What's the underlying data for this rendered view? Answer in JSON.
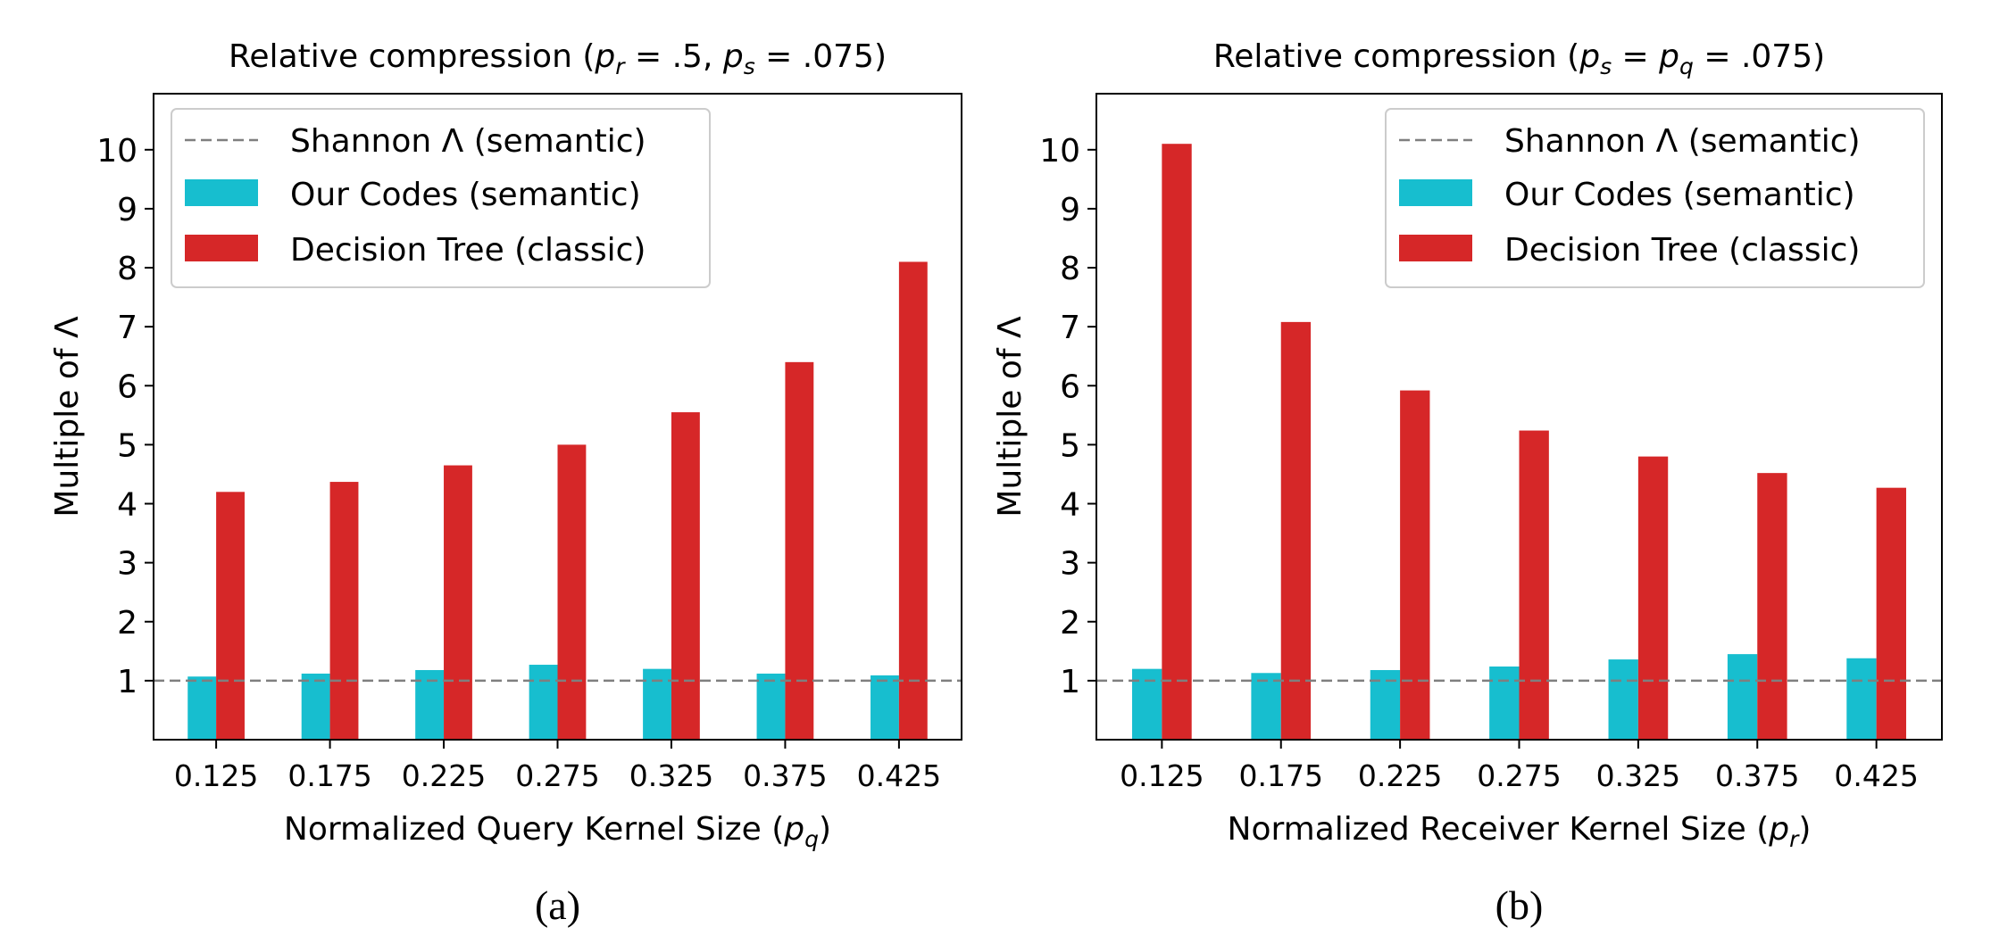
{
  "chart_data": [
    {
      "type": "bar",
      "panel_label": "(a)",
      "title_prefix": "Relative compression (",
      "title_params": [
        {
          "sym": "p",
          "sub": "r",
          "val": ".5"
        },
        {
          "sym": "p",
          "sub": "s",
          "val": ".075"
        }
      ],
      "title_suffix": ")",
      "xlabel_text": "Normalized Query Kernel Size (",
      "xlabel_sym": "p",
      "xlabel_sub": "q",
      "xlabel_suffix": ")",
      "ylabel": "Multiple of Λ",
      "categories": [
        "0.125",
        "0.175",
        "0.225",
        "0.275",
        "0.325",
        "0.375",
        "0.425"
      ],
      "yticks": [
        "1",
        "2",
        "3",
        "4",
        "5",
        "6",
        "7",
        "8",
        "9",
        "10"
      ],
      "ylim": [
        0,
        10.95
      ],
      "legend_position": "upper-left",
      "series": [
        {
          "name": "Our Codes (semantic)",
          "color": "#17becf",
          "values": [
            1.07,
            1.12,
            1.18,
            1.27,
            1.2,
            1.12,
            1.09
          ]
        },
        {
          "name": "Decision Tree (classic)",
          "color": "#d62728",
          "values": [
            4.2,
            4.37,
            4.65,
            5.0,
            5.55,
            6.4,
            8.1
          ]
        }
      ],
      "reference_line": {
        "name": "Shannon Λ (semantic)",
        "value": 1.0,
        "color": "#7f7f7f",
        "style": "dashed"
      }
    },
    {
      "type": "bar",
      "panel_label": "(b)",
      "title_prefix": "Relative compression (",
      "title_params": [
        {
          "sym": "p",
          "sub": "s",
          "val": "= p"
        },
        {
          "sym": "",
          "sub": "q",
          "val": ".075"
        }
      ],
      "title_suffix": ")",
      "xlabel_text": "Normalized Receiver Kernel Size (",
      "xlabel_sym": "p",
      "xlabel_sub": "r",
      "xlabel_suffix": ")",
      "ylabel": "Multiple of Λ",
      "categories": [
        "0.125",
        "0.175",
        "0.225",
        "0.275",
        "0.325",
        "0.375",
        "0.425"
      ],
      "yticks": [
        "1",
        "2",
        "3",
        "4",
        "5",
        "6",
        "7",
        "8",
        "9",
        "10"
      ],
      "ylim": [
        0,
        10.95
      ],
      "legend_position": "upper-right",
      "series": [
        {
          "name": "Our Codes (semantic)",
          "color": "#17becf",
          "values": [
            1.2,
            1.13,
            1.18,
            1.24,
            1.36,
            1.45,
            1.38
          ]
        },
        {
          "name": "Decision Tree (classic)",
          "color": "#d62728",
          "values": [
            10.1,
            7.08,
            5.92,
            5.24,
            4.8,
            4.52,
            4.27
          ]
        }
      ],
      "reference_line": {
        "name": "Shannon Λ (semantic)",
        "value": 1.0,
        "color": "#7f7f7f",
        "style": "dashed"
      }
    }
  ]
}
